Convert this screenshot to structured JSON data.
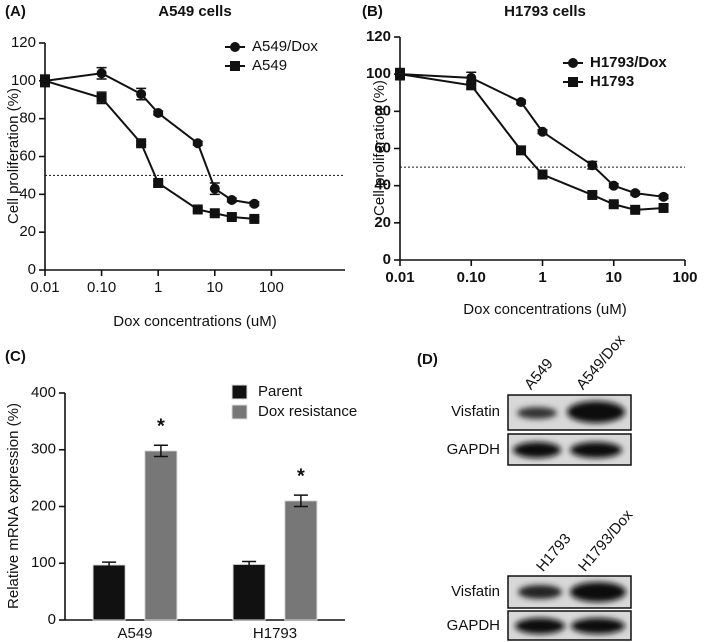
{
  "chart_data": [
    {
      "type": "line",
      "label": "(A)",
      "title": "A549 cells",
      "xlabel": "Dox concentrations (uM)",
      "ylabel": "Cell proliferation (%)",
      "xscale": "log",
      "xlim": [
        0.01,
        2000
      ],
      "xticks": [
        0.01,
        {
          "value": 0.1,
          "label": "0.10"
        },
        1,
        10,
        100
      ],
      "ylim": [
        0,
        120
      ],
      "yticks": [
        0,
        20,
        40,
        60,
        80,
        100,
        120
      ],
      "reference_line": 50,
      "legend": "upper right",
      "x": [
        0.01,
        0.1,
        0.5,
        1,
        5,
        10,
        20,
        50
      ],
      "series": [
        {
          "name": "A549/Dox",
          "color": "#111111",
          "marker": "circle",
          "values": [
            100,
            104,
            93,
            83,
            67,
            43,
            37,
            35
          ],
          "errors": [
            3,
            3,
            3,
            1,
            1,
            3,
            1,
            1
          ]
        },
        {
          "name": "A549",
          "color": "#111111",
          "marker": "square",
          "values": [
            100,
            91,
            67,
            46,
            32,
            30,
            28,
            27
          ],
          "errors": [
            3,
            3,
            1,
            1,
            1,
            1,
            1,
            1
          ]
        }
      ]
    },
    {
      "type": "line",
      "label": "(B)",
      "title": "H1793 cells",
      "xlabel": "Dox concentrations (uM)",
      "ylabel": "Cell proliferation (%)",
      "xscale": "log",
      "xlim": [
        0.01,
        100
      ],
      "xticks": [
        0.01,
        {
          "value": 0.1,
          "label": "0.10"
        },
        1,
        10,
        100
      ],
      "ylim": [
        0,
        120
      ],
      "yticks": [
        0,
        20,
        40,
        60,
        80,
        100,
        120
      ],
      "reference_line": 50,
      "legend": "upper right",
      "x": [
        0.01,
        0.1,
        0.5,
        1,
        5,
        10,
        20,
        50
      ],
      "series": [
        {
          "name": "H1793/Dox",
          "color": "#111111",
          "marker": "circle",
          "values": [
            100,
            98,
            85,
            69,
            51,
            40,
            36,
            34
          ],
          "errors": [
            3,
            3,
            1,
            1,
            2,
            1,
            1,
            1
          ]
        },
        {
          "name": "H1793",
          "color": "#111111",
          "marker": "square",
          "values": [
            100,
            94,
            59,
            46,
            35,
            30,
            27,
            28
          ],
          "errors": [
            3,
            2,
            2,
            1,
            1,
            1,
            1,
            1
          ]
        }
      ]
    },
    {
      "type": "bar",
      "label": "(C)",
      "ylabel": "Relative mRNA expression (%)",
      "categories": [
        "A549",
        "H1793"
      ],
      "ylim": [
        0,
        400
      ],
      "yticks": [
        0,
        100,
        200,
        300,
        400
      ],
      "legend": "upper right",
      "significance": [
        "*",
        "*"
      ],
      "series": [
        {
          "name": "Parent",
          "color": "#111111",
          "values": [
            97,
            98
          ],
          "errors": [
            5,
            5
          ]
        },
        {
          "name": "Dox resistance",
          "color": "#777777",
          "values": [
            298,
            210
          ],
          "errors": [
            10,
            10
          ]
        }
      ]
    }
  ],
  "western_blot": {
    "label": "(D)",
    "blots": [
      {
        "columns": [
          "A549",
          "A549/Dox"
        ],
        "rows": [
          "Visfatin",
          "GAPDH"
        ]
      },
      {
        "columns": [
          "H1793",
          "H1793/Dox"
        ],
        "rows": [
          "Visfatin",
          "GAPDH"
        ]
      }
    ]
  }
}
